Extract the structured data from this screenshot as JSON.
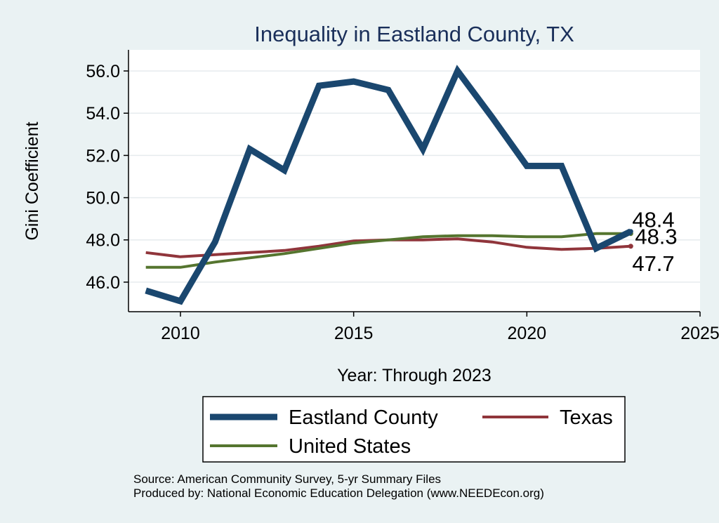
{
  "chart_data": {
    "type": "line",
    "title": "Inequality in Eastland County, TX",
    "xlabel": "Year: Through 2023",
    "ylabel": "Gini Coefficient",
    "xlim": [
      2008.5,
      2025
    ],
    "ylim": [
      44.6,
      57.0
    ],
    "xticks": [
      2010,
      2015,
      2020,
      2025
    ],
    "yticks": [
      46.0,
      48.0,
      50.0,
      52.0,
      54.0,
      56.0
    ],
    "ytick_format": 1,
    "grid": true,
    "legend_position": "bottom",
    "x": [
      2009,
      2010,
      2011,
      2012,
      2013,
      2014,
      2015,
      2016,
      2017,
      2018,
      2019,
      2020,
      2021,
      2022,
      2023
    ],
    "series": [
      {
        "name": "Eastland County",
        "color": "#1a476f",
        "width": 9,
        "values": [
          45.6,
          45.1,
          47.9,
          52.3,
          51.3,
          55.3,
          55.5,
          55.1,
          52.3,
          56.0,
          53.8,
          51.5,
          51.5,
          47.6,
          48.4
        ],
        "end_label": "48.4"
      },
      {
        "name": "Texas",
        "color": "#90353b",
        "width": 4,
        "values": [
          47.4,
          47.2,
          47.3,
          47.4,
          47.5,
          47.7,
          47.95,
          48.0,
          48.0,
          48.05,
          47.9,
          47.65,
          47.55,
          47.6,
          47.7
        ],
        "end_label": "47.7"
      },
      {
        "name": "United States",
        "color": "#55752f",
        "width": 4,
        "values": [
          46.7,
          46.7,
          46.95,
          47.15,
          47.35,
          47.6,
          47.85,
          48.0,
          48.15,
          48.2,
          48.2,
          48.15,
          48.15,
          48.3,
          48.3
        ],
        "end_label": "48.3"
      }
    ]
  },
  "notes": {
    "source": "Source: American Community Survey, 5-yr Summary Files",
    "produced": "Produced by: National Economic Education Delegation (www.NEEDEcon.org)"
  }
}
